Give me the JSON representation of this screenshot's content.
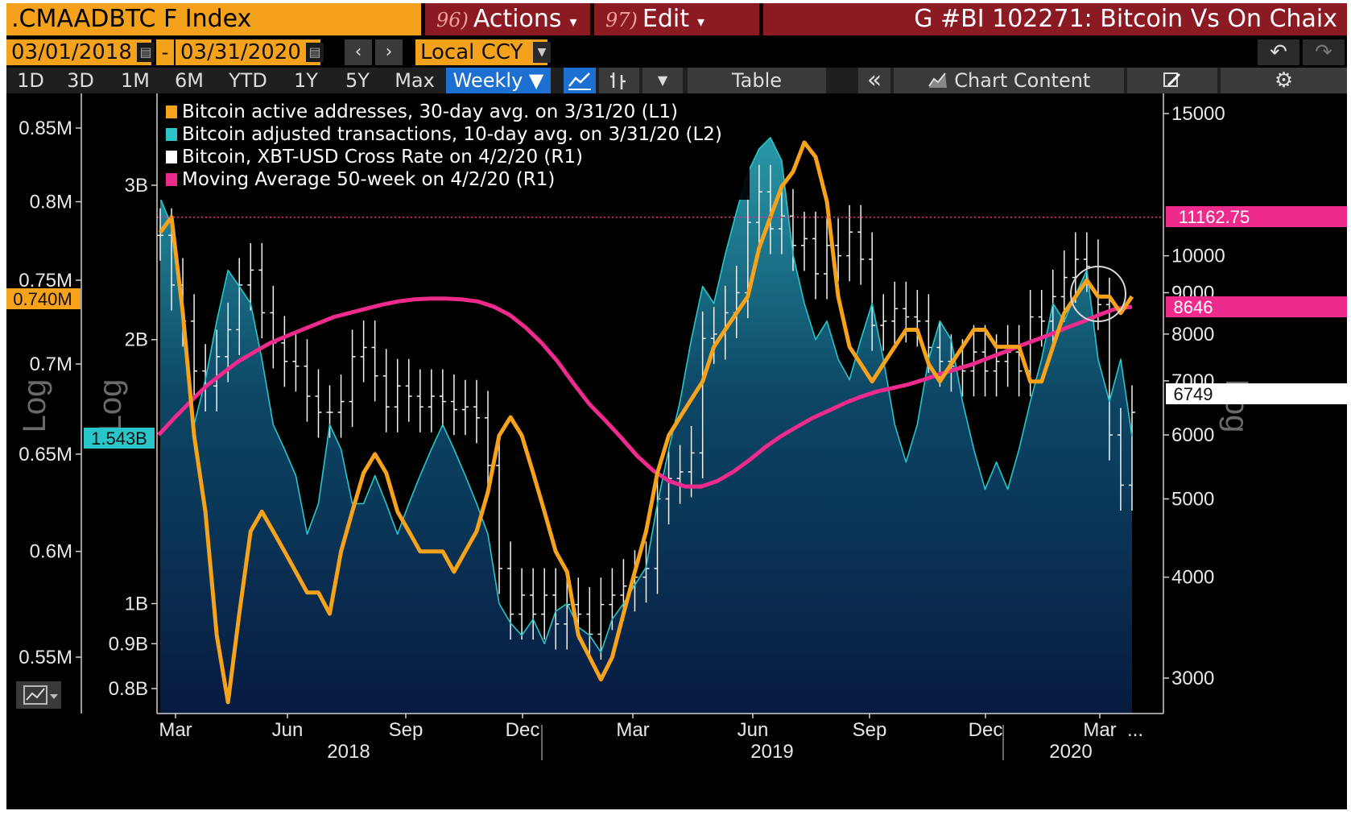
{
  "toolbar": {
    "ticker": ".CMAADBTC F Index",
    "actions_num": "96)",
    "actions_label": "Actions",
    "edit_num": "97)",
    "edit_label": "Edit",
    "graph_title": "G #BI 102271: Bitcoin Vs On Chaix",
    "start_date": "03/01/2018",
    "date_sep": "-",
    "end_date": "03/31/2020",
    "currency": "Local CCY",
    "periods": [
      "1D",
      "3D",
      "1M",
      "6M",
      "YTD",
      "1Y",
      "5Y",
      "Max"
    ],
    "frequency": "Weekly ▼",
    "table_label": "Table",
    "collapse_label": "«",
    "chart_content_label": "Chart Content"
  },
  "colors": {
    "orange": "#f7a21b",
    "cyan": "#28c6c8",
    "white": "#ffffff",
    "pink": "#ee2a8d",
    "toolbar_orange": "#f4a11c",
    "toolbar_red": "#8b1a22",
    "active_blue": "#1d6fd1"
  },
  "chart_data": {
    "type": "line",
    "legend": [
      {
        "label": "Bitcoin active addresses, 30-day avg. on 3/31/20 (L1)",
        "color": "#f7a21b"
      },
      {
        "label": "Bitcoin adjusted transactions, 10-day avg. on 3/31/20 (L2)",
        "color": "#28c6c8"
      },
      {
        "label": "Bitcoin, XBT-USD Cross Rate on 4/2/20 (R1)",
        "color": "#ffffff"
      },
      {
        "label": "Moving Average 50-week on 4/2/20 (R1)",
        "color": "#ee2a8d"
      }
    ],
    "x_ticks": [
      "Mar",
      "Jun",
      "Sep",
      "Dec",
      "Mar",
      "Jun",
      "Sep",
      "Dec",
      "Mar"
    ],
    "years": [
      "2018",
      "2019",
      "2020"
    ],
    "more_label": "...",
    "axis_L1": {
      "ticks": [
        "0.85M",
        "0.8M",
        "0.75M",
        "0.7M",
        "0.65M",
        "0.6M",
        "0.55M"
      ],
      "scale_label": "Log",
      "current_value": "0.740M"
    },
    "axis_L2": {
      "ticks": [
        "3B",
        "2B",
        "1B",
        "0.9B",
        "0.8B"
      ],
      "scale_label": "Log",
      "current_value": "1.543B"
    },
    "axis_R1": {
      "ticks": [
        "15000",
        "10000",
        "9000",
        "8000",
        "7000",
        "6000",
        "5000",
        "4000",
        "3000"
      ],
      "scale_label": "Log",
      "current_value": "6749",
      "ma_value": "8646",
      "reference_value": "11162.75"
    },
    "series": [
      {
        "name": "Bitcoin active addresses, 30-day avg.",
        "axis": "L1",
        "values": [
          0.78,
          0.79,
          0.73,
          0.66,
          0.62,
          0.56,
          0.53,
          0.57,
          0.61,
          0.62,
          0.61,
          0.6,
          0.59,
          0.58,
          0.58,
          0.57,
          0.6,
          0.62,
          0.64,
          0.65,
          0.64,
          0.62,
          0.61,
          0.6,
          0.6,
          0.6,
          0.59,
          0.6,
          0.61,
          0.63,
          0.66,
          0.67,
          0.66,
          0.64,
          0.62,
          0.6,
          0.59,
          0.56,
          0.55,
          0.54,
          0.55,
          0.57,
          0.59,
          0.61,
          0.64,
          0.66,
          0.67,
          0.68,
          0.69,
          0.71,
          0.72,
          0.73,
          0.74,
          0.77,
          0.79,
          0.81,
          0.82,
          0.84,
          0.83,
          0.8,
          0.74,
          0.71,
          0.7,
          0.69,
          0.7,
          0.71,
          0.72,
          0.72,
          0.7,
          0.69,
          0.7,
          0.71,
          0.72,
          0.72,
          0.71,
          0.71,
          0.71,
          0.69,
          0.69,
          0.71,
          0.73,
          0.74,
          0.75,
          0.74,
          0.74,
          0.73,
          0.74
        ]
      },
      {
        "name": "Bitcoin adjusted transactions, 10-day avg.",
        "axis": "L2",
        "values": [
          2.9,
          2.7,
          2.1,
          1.6,
          1.8,
          2.1,
          2.4,
          2.3,
          2.2,
          1.9,
          1.6,
          1.5,
          1.4,
          1.2,
          1.3,
          1.6,
          1.5,
          1.3,
          1.3,
          1.4,
          1.3,
          1.2,
          1.3,
          1.4,
          1.5,
          1.6,
          1.5,
          1.4,
          1.3,
          1.2,
          1.0,
          0.95,
          0.92,
          0.96,
          0.9,
          0.98,
          1.0,
          0.94,
          0.92,
          0.88,
          0.96,
          1.0,
          1.05,
          1.1,
          1.3,
          1.5,
          1.7,
          2.0,
          2.3,
          2.2,
          2.5,
          2.8,
          3.1,
          3.3,
          3.4,
          3.2,
          2.5,
          2.2,
          2.0,
          2.1,
          1.9,
          1.8,
          2.0,
          2.2,
          1.9,
          1.6,
          1.45,
          1.6,
          1.9,
          2.1,
          2.0,
          1.7,
          1.5,
          1.35,
          1.45,
          1.35,
          1.5,
          1.7,
          1.9,
          2.2,
          2.1,
          2.25,
          2.4,
          1.9,
          1.7,
          1.9,
          1.55
        ]
      },
      {
        "name": "Bitcoin, XBT-USD Cross Rate",
        "axis": "R1",
        "values": [
          10600,
          9200,
          8300,
          7200,
          6900,
          7500,
          8100,
          9200,
          9600,
          8500,
          7800,
          7400,
          7300,
          6700,
          6400,
          6400,
          6600,
          7500,
          7700,
          7100,
          6500,
          6900,
          6700,
          6500,
          6700,
          6600,
          6450,
          6500,
          6300,
          5500,
          4100,
          3600,
          3800,
          3600,
          3800,
          3500,
          3700,
          3600,
          3400,
          3700,
          3800,
          3900,
          4000,
          4100,
          5000,
          5300,
          5400,
          5700,
          7900,
          8000,
          8500,
          9000,
          11000,
          12000,
          10800,
          11200,
          10300,
          10500,
          9500,
          10300,
          10000,
          10700,
          9900,
          8200,
          8300,
          8600,
          8400,
          8300,
          7700,
          7400,
          7300,
          7200,
          7600,
          7200,
          7400,
          7600,
          7200,
          8400,
          8300,
          8900,
          9400,
          9900,
          9700,
          8700,
          6000,
          5200,
          6400
        ]
      },
      {
        "name": "Moving Average 50-week",
        "axis": "R1",
        "values": [
          6000,
          6300,
          6600,
          6900,
          7150,
          7400,
          7600,
          7800,
          7950,
          8100,
          8250,
          8400,
          8500,
          8600,
          8700,
          8780,
          8830,
          8850,
          8850,
          8830,
          8780,
          8650,
          8450,
          8150,
          7800,
          7400,
          6950,
          6550,
          6250,
          5950,
          5650,
          5420,
          5260,
          5180,
          5180,
          5260,
          5400,
          5580,
          5790,
          5980,
          6140,
          6300,
          6430,
          6570,
          6690,
          6790,
          6860,
          6930,
          7030,
          7140,
          7240,
          7340,
          7470,
          7600,
          7740,
          7870,
          8010,
          8160,
          8300,
          8460,
          8600,
          8646
        ]
      }
    ]
  }
}
